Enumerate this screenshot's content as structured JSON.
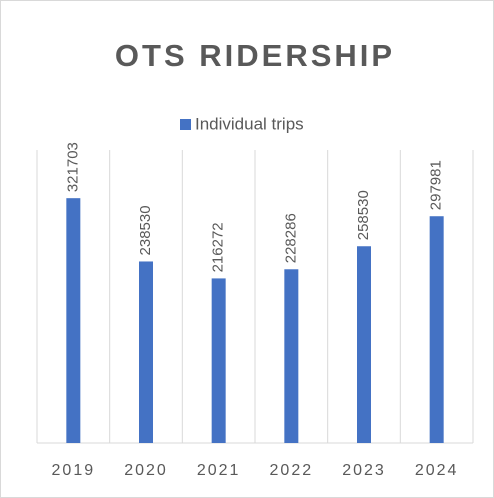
{
  "chart_data": {
    "type": "bar",
    "title": "OTS RIDERSHIP",
    "categories": [
      "2019",
      "2020",
      "2021",
      "2022",
      "2023",
      "2024"
    ],
    "series": [
      {
        "name": "Individual trips",
        "color": "#4472c4",
        "values": [
          321703,
          238530,
          216272,
          228286,
          258530,
          297981
        ]
      }
    ],
    "ylim": [
      0,
      385000
    ],
    "grid": true,
    "legend": "top",
    "data_labels": true
  }
}
